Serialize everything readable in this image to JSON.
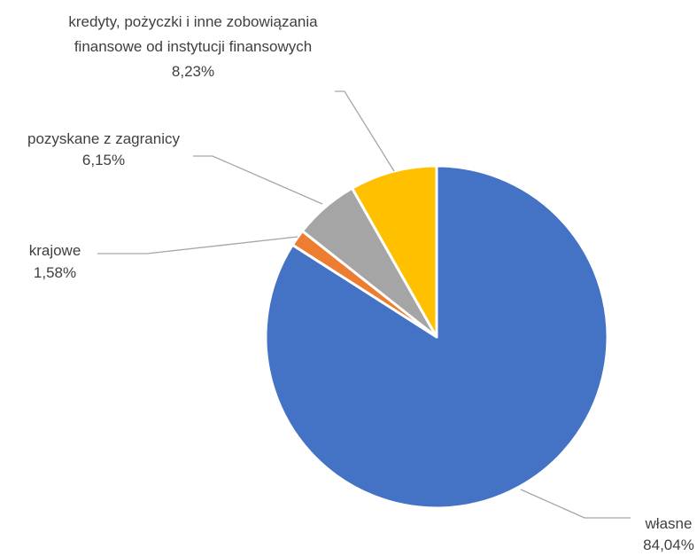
{
  "chart_data": {
    "type": "pie",
    "title": "",
    "legend": "none",
    "slices": [
      {
        "name": "własne",
        "value": 84.04,
        "value_label": "84,04%",
        "color": "#4472C4"
      },
      {
        "name": "krajowe",
        "value": 1.58,
        "value_label": "1,58%",
        "color": "#ED7D31"
      },
      {
        "name": "pozyskane z zagranicy",
        "value": 6.15,
        "value_label": "6,15%",
        "color": "#A5A5A5"
      },
      {
        "name_lines": [
          "kredyty, pożyczki i inne zobowiązania",
          "finansowe od instytucji finansowych"
        ],
        "value": 8.23,
        "value_label": "8,23%",
        "color": "#FFC000"
      }
    ]
  }
}
